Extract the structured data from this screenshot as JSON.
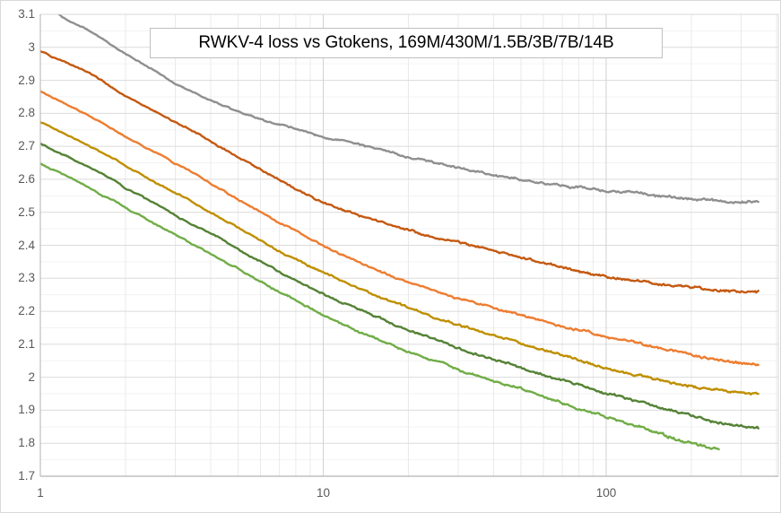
{
  "title": "RWKV-4 loss vs Gtokens, 169M/430M/1.5B/3B/7B/14B",
  "colors": {
    "grid_major": "#dbdbdb",
    "grid_minor": "#f3f3f3",
    "grid_vertical": "#eaeaea",
    "grid_decade": "#d2d2d2",
    "axis_line": "#bfbfbf",
    "plot_border": "#d9d9d9",
    "tick_text": "#595959",
    "title_text": "#000000",
    "title_border": "#bfbfbf"
  },
  "chart_data": {
    "type": "line",
    "title": "RWKV-4 loss vs Gtokens, 169M/430M/1.5B/3B/7B/14B",
    "xlabel": "",
    "ylabel": "",
    "x_axis": {
      "scale": "log",
      "min": 1,
      "max": 400,
      "ticks": [
        {
          "label": "1",
          "value": 1
        },
        {
          "label": "10",
          "value": 10
        },
        {
          "label": "100",
          "value": 100
        }
      ]
    },
    "y_axis": {
      "min": 1.7,
      "max": 3.1,
      "tick_step": 0.1,
      "minor_step": 0.05,
      "tick_labels": [
        "3.1",
        "3",
        "2.9",
        "2.8",
        "2.7",
        "2.6",
        "2.5",
        "2.4",
        "2.3",
        "2.2",
        "2.1",
        "2",
        "1.9",
        "1.8",
        "1.7"
      ]
    },
    "grid": true,
    "legend_position": "none",
    "series": [
      {
        "name": "169M",
        "color": "#8f8f8f",
        "points": [
          [
            1,
            3.16
          ],
          [
            1.2,
            3.09
          ],
          [
            1.5,
            3.05
          ],
          [
            2,
            2.98
          ],
          [
            3,
            2.89
          ],
          [
            4,
            2.84
          ],
          [
            5,
            2.805
          ],
          [
            7,
            2.765
          ],
          [
            10,
            2.73
          ],
          [
            14,
            2.7
          ],
          [
            20,
            2.665
          ],
          [
            30,
            2.633
          ],
          [
            50,
            2.6
          ],
          [
            70,
            2.582
          ],
          [
            100,
            2.565
          ],
          [
            150,
            2.55
          ],
          [
            200,
            2.542
          ],
          [
            270,
            2.536
          ],
          [
            345,
            2.533
          ]
        ]
      },
      {
        "name": "430M",
        "color": "#c45911",
        "points": [
          [
            1,
            2.99
          ],
          [
            1.5,
            2.92
          ],
          [
            2,
            2.855
          ],
          [
            3,
            2.775
          ],
          [
            4,
            2.715
          ],
          [
            5,
            2.665
          ],
          [
            7,
            2.6
          ],
          [
            10,
            2.53
          ],
          [
            14,
            2.483
          ],
          [
            20,
            2.443
          ],
          [
            30,
            2.408
          ],
          [
            50,
            2.363
          ],
          [
            70,
            2.333
          ],
          [
            100,
            2.305
          ],
          [
            150,
            2.283
          ],
          [
            200,
            2.27
          ],
          [
            270,
            2.262
          ],
          [
            345,
            2.258
          ]
        ]
      },
      {
        "name": "1.5B",
        "color": "#ed7d31",
        "points": [
          [
            1,
            2.868
          ],
          [
            1.5,
            2.795
          ],
          [
            2,
            2.73
          ],
          [
            3,
            2.648
          ],
          [
            4,
            2.588
          ],
          [
            5,
            2.54
          ],
          [
            7,
            2.468
          ],
          [
            10,
            2.4
          ],
          [
            14,
            2.34
          ],
          [
            20,
            2.288
          ],
          [
            30,
            2.24
          ],
          [
            50,
            2.19
          ],
          [
            70,
            2.155
          ],
          [
            100,
            2.125
          ],
          [
            150,
            2.093
          ],
          [
            200,
            2.068
          ],
          [
            270,
            2.048
          ],
          [
            345,
            2.04
          ]
        ]
      },
      {
        "name": "3B",
        "color": "#bf8f00",
        "points": [
          [
            1,
            2.775
          ],
          [
            1.5,
            2.703
          ],
          [
            2,
            2.64
          ],
          [
            3,
            2.558
          ],
          [
            4,
            2.5
          ],
          [
            5,
            2.453
          ],
          [
            7,
            2.383
          ],
          [
            10,
            2.318
          ],
          [
            14,
            2.262
          ],
          [
            20,
            2.21
          ],
          [
            30,
            2.158
          ],
          [
            50,
            2.103
          ],
          [
            70,
            2.065
          ],
          [
            100,
            2.03
          ],
          [
            150,
            1.995
          ],
          [
            200,
            1.973
          ],
          [
            270,
            1.956
          ],
          [
            345,
            1.948
          ]
        ]
      },
      {
        "name": "7B",
        "color": "#548235",
        "points": [
          [
            1,
            2.708
          ],
          [
            1.5,
            2.635
          ],
          [
            2,
            2.573
          ],
          [
            3,
            2.492
          ],
          [
            4,
            2.435
          ],
          [
            5,
            2.388
          ],
          [
            7,
            2.318
          ],
          [
            10,
            2.253
          ],
          [
            14,
            2.198
          ],
          [
            20,
            2.143
          ],
          [
            30,
            2.088
          ],
          [
            50,
            2.03
          ],
          [
            70,
            1.99
          ],
          [
            100,
            1.952
          ],
          [
            150,
            1.912
          ],
          [
            200,
            1.882
          ],
          [
            270,
            1.858
          ],
          [
            345,
            1.845
          ]
        ]
      },
      {
        "name": "14B",
        "color": "#71ad47",
        "points": [
          [
            1,
            2.648
          ],
          [
            1.5,
            2.575
          ],
          [
            2,
            2.513
          ],
          [
            3,
            2.432
          ],
          [
            4,
            2.375
          ],
          [
            5,
            2.328
          ],
          [
            7,
            2.258
          ],
          [
            10,
            2.19
          ],
          [
            14,
            2.133
          ],
          [
            20,
            2.078
          ],
          [
            30,
            2.023
          ],
          [
            50,
            1.963
          ],
          [
            70,
            1.92
          ],
          [
            100,
            1.878
          ],
          [
            150,
            1.833
          ],
          [
            200,
            1.8
          ],
          [
            250,
            1.782
          ]
        ]
      }
    ]
  }
}
